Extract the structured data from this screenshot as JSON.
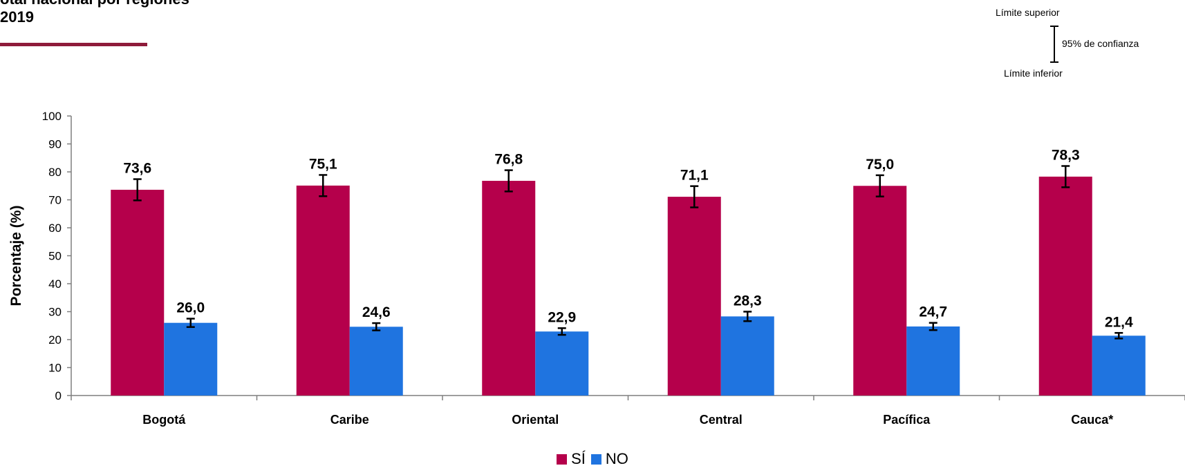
{
  "title": {
    "line1": "otal nacional por regiones",
    "line2": "2019"
  },
  "colors": {
    "title_rule": "#8e1b3a",
    "si": "#b5004b",
    "no": "#1f74e0",
    "axis": "#7f7f7f",
    "error_bar": "#000000"
  },
  "ci_legend": {
    "upper": "Límite superior",
    "confidence": "95% de confianza",
    "lower": "Límite inferior"
  },
  "chart_data": {
    "type": "bar",
    "title": "",
    "xlabel": "",
    "ylabel": "Porcentaje (%)",
    "ylim": [
      0,
      100
    ],
    "yticks": [
      0,
      10,
      20,
      30,
      40,
      50,
      60,
      70,
      80,
      90,
      100
    ],
    "categories": [
      "Bogotá",
      "Caribe",
      "Oriental",
      "Central",
      "Pacífica",
      "Cauca*"
    ],
    "series": [
      {
        "name": "SÍ",
        "values": [
          73.6,
          75.1,
          76.8,
          71.1,
          75.0,
          78.3
        ],
        "labels": [
          "73,6",
          "75,1",
          "76,8",
          "71,1",
          "75,0",
          "78,3"
        ],
        "ci_low": [
          69.8,
          71.3,
          73.0,
          67.3,
          71.2,
          74.5
        ],
        "ci_high": [
          77.4,
          78.9,
          80.6,
          74.9,
          78.8,
          82.1
        ]
      },
      {
        "name": "NO",
        "values": [
          26.0,
          24.6,
          22.9,
          28.3,
          24.7,
          21.4
        ],
        "labels": [
          "26,0",
          "24,6",
          "22,9",
          "28,3",
          "24,7",
          "21,4"
        ],
        "ci_low": [
          24.5,
          23.3,
          21.7,
          26.6,
          23.4,
          20.4
        ],
        "ci_high": [
          27.5,
          25.9,
          24.1,
          30.0,
          26.0,
          22.4
        ]
      }
    ],
    "grid": false,
    "legend_position": "bottom"
  }
}
